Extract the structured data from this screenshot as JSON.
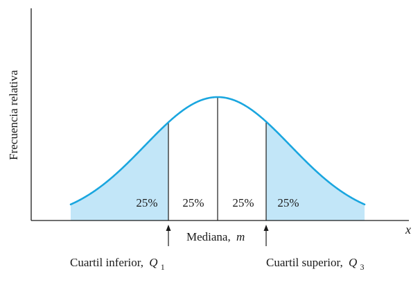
{
  "figure": {
    "y_axis_label": "Frecuencia relativa",
    "x_axis_label": "x",
    "regions": [
      {
        "label": "25%",
        "shaded": true
      },
      {
        "label": "25%",
        "shaded": false
      },
      {
        "label": "25%",
        "shaded": false
      },
      {
        "label": "25%",
        "shaded": true
      }
    ],
    "median_label": "Mediana,",
    "median_symbol": "m",
    "lower_quartile_label": "Cuartil inferior,",
    "lower_quartile_symbol": "Q",
    "lower_quartile_sub": "1",
    "upper_quartile_label": "Cuartil superior,",
    "upper_quartile_symbol": "Q",
    "upper_quartile_sub": "3",
    "colors": {
      "curve": "#1aa6df",
      "shade": "#c2e6f8",
      "axis": "#1a1a1a"
    }
  }
}
